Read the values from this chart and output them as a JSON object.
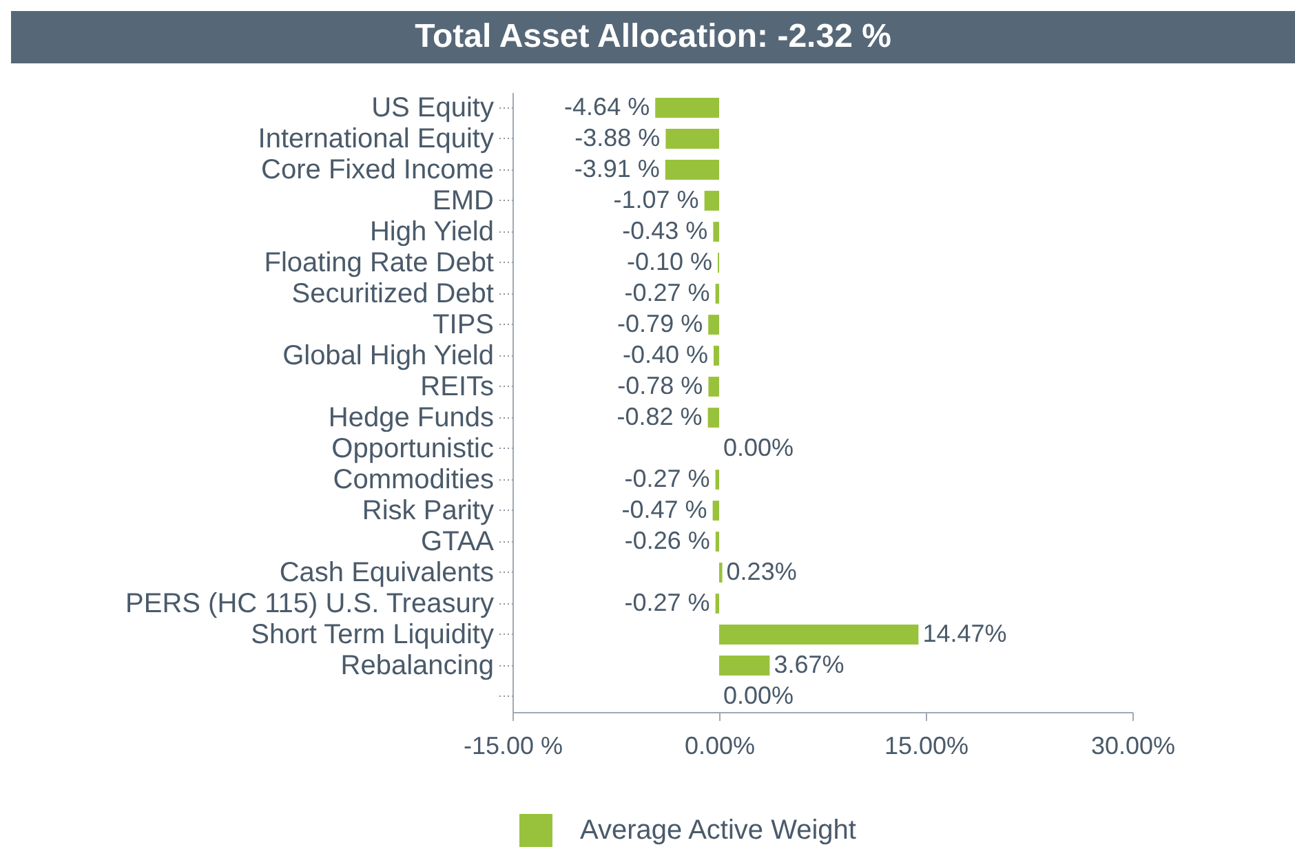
{
  "chart_data": {
    "type": "bar",
    "orientation": "horizontal",
    "title": "Total Asset Allocation: -2.32 %",
    "categories": [
      "US Equity",
      "International Equity",
      "Core Fixed Income",
      "EMD",
      "High Yield",
      "Floating Rate Debt",
      "Securitized Debt",
      "TIPS",
      "Global High Yield",
      "REITs",
      "Hedge Funds",
      "Opportunistic",
      "Commodities",
      "Risk Parity",
      "GTAA",
      "Cash Equivalents",
      "PERS (HC 115) U.S. Treasury",
      "Short Term Liquidity",
      "Rebalancing",
      null
    ],
    "series": [
      {
        "name": "Average Active Weight",
        "color": "#99c23c",
        "values": [
          -4.64,
          -3.88,
          -3.91,
          -1.07,
          -0.43,
          -0.1,
          -0.27,
          -0.79,
          -0.4,
          -0.78,
          -0.82,
          0.0,
          -0.27,
          -0.47,
          -0.26,
          0.23,
          -0.27,
          14.47,
          3.67,
          0.0
        ],
        "value_labels": [
          "-4.64 %",
          "-3.88 %",
          "-3.91 %",
          "-1.07 %",
          "-0.43 %",
          "-0.10 %",
          "-0.27 %",
          "-0.79 %",
          "-0.40 %",
          "-0.78 %",
          "-0.82 %",
          "0.00%",
          "-0.27 %",
          "-0.47 %",
          "-0.26 %",
          "0.23%",
          "-0.27 %",
          "14.47%",
          "3.67%",
          "0.00%"
        ]
      }
    ],
    "xlim": [
      -15,
      30
    ],
    "xticks": [
      {
        "value": -15,
        "label": "-15.00 %"
      },
      {
        "value": 0,
        "label": "0.00%"
      },
      {
        "value": 15,
        "label": "15.00%"
      },
      {
        "value": 30,
        "label": "30.00%"
      }
    ],
    "legend": "bottom"
  }
}
